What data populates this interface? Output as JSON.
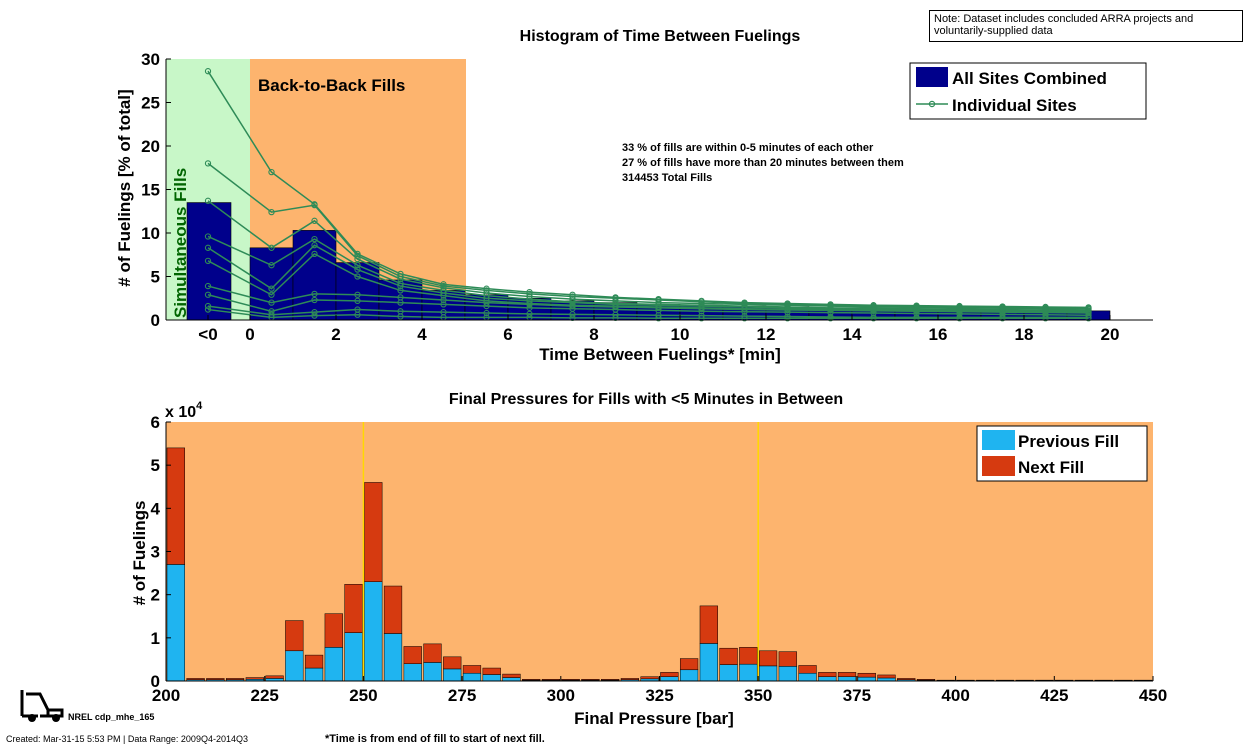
{
  "note": "Note: Dataset includes concluded ARRA projects and voluntarily-supplied data",
  "footer": {
    "created": "Created: Mar-31-15  5:53 PM | Data Range: 2009Q4-2014Q3",
    "footnote": "*Time is from end of fill to start of next fill.",
    "logo_label": "NREL cdp_mhe_165"
  },
  "colors": {
    "navy": "#00008b",
    "green_line": "#2e8b57",
    "green_region": "#c8f7c8",
    "orange_region": "#fdb46e",
    "previous_fill": "#1fb4f0",
    "next_fill": "#d63a10",
    "yellow_line": "#ffd800"
  },
  "chart_data": [
    {
      "type": "bar",
      "title": "Histogram of Time Between Fuelings",
      "xlabel": "Time Between Fuelings* [min]",
      "ylabel": "# of Fuelings [% of total]",
      "ylim": [
        0,
        30
      ],
      "yticks": [
        0,
        5,
        10,
        15,
        20,
        25,
        30
      ],
      "xtick_labels": [
        "<0",
        "0",
        "2",
        "4",
        "6",
        "8",
        "10",
        "12",
        "14",
        "16",
        "18",
        "20"
      ],
      "regions": [
        {
          "label": "Simultaneous Fills",
          "from": "<0",
          "to": 0
        },
        {
          "label": "Back-to-Back Fills",
          "from": 0,
          "to": 5
        }
      ],
      "annotations": [
        "33 % of fills are within 0-5 minutes of each other",
        "27 % of fills have more than 20 minutes between them",
        "314453 Total Fills"
      ],
      "legend": {
        "placement": "top-right",
        "entries": [
          "All Sites Combined",
          "Individual Sites"
        ]
      },
      "all_sites_neg": 13.5,
      "all_sites_x": [
        0.5,
        1.5,
        2.5,
        3.5,
        4.5,
        5.5,
        6.5,
        7.5,
        8.5,
        9.5,
        10.5,
        11.5,
        12.5,
        13.5,
        14.5,
        15.5,
        16.5,
        17.5,
        18.5,
        19.5
      ],
      "all_sites": [
        8.3,
        10.3,
        6.6,
        4.6,
        3.4,
        2.9,
        2.5,
        2.2,
        2.0,
        1.8,
        1.7,
        1.6,
        1.5,
        1.4,
        1.3,
        1.25,
        1.2,
        1.15,
        1.1,
        1.05
      ],
      "site_x": [
        "<0",
        0.5,
        1.5,
        2.5,
        3.5,
        4.5,
        5.5,
        6.5,
        7.5,
        8.5,
        9.5,
        10.5,
        11.5,
        12.5,
        13.5,
        14.5,
        15.5,
        16.5,
        17.5,
        18.5,
        19.5
      ],
      "individual_sites": [
        [
          28.6,
          17.0,
          13.3,
          7.6,
          5.3,
          4.1,
          3.6,
          3.2,
          2.9,
          2.6,
          2.4,
          2.2,
          2.0,
          1.9,
          1.8,
          1.7,
          1.65,
          1.6,
          1.55,
          1.5,
          1.45
        ],
        [
          18.0,
          12.4,
          13.2,
          7.4,
          5.0,
          3.9,
          3.4,
          3.0,
          2.7,
          2.5,
          2.3,
          2.1,
          1.9,
          1.8,
          1.7,
          1.6,
          1.55,
          1.5,
          1.45,
          1.4,
          1.35
        ],
        [
          13.7,
          8.3,
          11.4,
          7.0,
          4.7,
          3.7,
          3.1,
          2.7,
          2.4,
          2.2,
          2.0,
          1.9,
          1.8,
          1.7,
          1.6,
          1.5,
          1.45,
          1.4,
          1.35,
          1.3,
          1.25
        ],
        [
          9.6,
          6.3,
          9.3,
          6.3,
          4.2,
          3.4,
          2.8,
          2.4,
          2.1,
          1.9,
          1.8,
          1.7,
          1.6,
          1.5,
          1.4,
          1.35,
          1.3,
          1.25,
          1.2,
          1.15,
          1.1
        ],
        [
          8.3,
          3.6,
          8.6,
          5.8,
          3.9,
          3.1,
          2.5,
          2.2,
          2.0,
          1.8,
          1.7,
          1.6,
          1.5,
          1.4,
          1.3,
          1.25,
          1.2,
          1.15,
          1.1,
          1.05,
          1.0
        ],
        [
          6.8,
          2.9,
          7.6,
          5.0,
          3.4,
          2.8,
          2.2,
          1.9,
          1.7,
          1.6,
          1.5,
          1.4,
          1.3,
          1.25,
          1.2,
          1.15,
          1.1,
          1.05,
          1.0,
          0.95,
          0.9
        ],
        [
          3.9,
          2.0,
          3.0,
          2.9,
          2.6,
          2.3,
          2.0,
          1.8,
          1.6,
          1.5,
          1.4,
          1.3,
          1.2,
          1.15,
          1.1,
          1.05,
          1.0,
          0.95,
          0.9,
          0.85,
          0.8
        ],
        [
          2.9,
          1.0,
          2.3,
          2.2,
          2.0,
          1.8,
          1.6,
          1.4,
          1.3,
          1.2,
          1.1,
          1.0,
          0.95,
          0.9,
          0.85,
          0.8,
          0.75,
          0.7,
          0.65,
          0.6,
          0.55
        ],
        [
          1.6,
          0.6,
          0.9,
          1.2,
          1.0,
          0.9,
          0.8,
          0.7,
          0.65,
          0.6,
          0.55,
          0.5,
          0.45,
          0.4,
          0.35,
          0.3,
          0.3,
          0.3,
          0.3,
          0.3,
          0.3
        ],
        [
          1.2,
          0.3,
          0.5,
          0.6,
          0.4,
          0.3,
          0.3,
          0.3,
          0.25,
          0.25,
          0.2,
          0.2,
          0.2,
          0.2,
          0.2,
          0.2,
          0.2,
          0.2,
          0.2,
          0.2,
          0.2
        ]
      ]
    },
    {
      "type": "bar",
      "title": "Final Pressures for Fills with <5 Minutes in Between",
      "xlabel": "Final Pressure [bar]",
      "ylabel": "# of Fuelings",
      "y_multiplier": "x 10",
      "y_multiplier_exp": "4",
      "xlim": [
        200,
        450
      ],
      "xticks": [
        200,
        225,
        250,
        275,
        300,
        325,
        350,
        375,
        400,
        425,
        450
      ],
      "ylim": [
        0,
        60000
      ],
      "ytick_labels": [
        "0",
        "1",
        "2",
        "3",
        "4",
        "5",
        "6"
      ],
      "reference_lines": [
        250,
        350
      ],
      "legend": {
        "placement": "top-right",
        "entries": [
          "Previous Fill",
          "Next Fill"
        ]
      },
      "bin_start": 200,
      "bin_width": 5,
      "previous_fill": [
        27000,
        300,
        300,
        300,
        400,
        600,
        7000,
        3000,
        7800,
        11200,
        23000,
        11000,
        4000,
        4300,
        2800,
        1800,
        1500,
        800,
        200,
        200,
        200,
        200,
        200,
        300,
        500,
        1000,
        2600,
        8700,
        3800,
        3900,
        3500,
        3400,
        1800,
        1000,
        1000,
        900,
        700,
        300,
        200,
        100,
        100,
        100,
        100,
        100,
        100,
        100,
        100,
        100,
        100,
        100
      ],
      "next_fill": [
        27000,
        300,
        300,
        300,
        400,
        600,
        7000,
        3000,
        7800,
        11200,
        23000,
        11000,
        4000,
        4300,
        2800,
        1800,
        1500,
        800,
        200,
        200,
        200,
        200,
        200,
        300,
        500,
        1000,
        2600,
        8700,
        3800,
        3900,
        3500,
        3400,
        1800,
        1000,
        1000,
        900,
        700,
        300,
        200,
        100,
        100,
        100,
        100,
        100,
        100,
        100,
        100,
        100,
        100,
        100
      ]
    }
  ]
}
